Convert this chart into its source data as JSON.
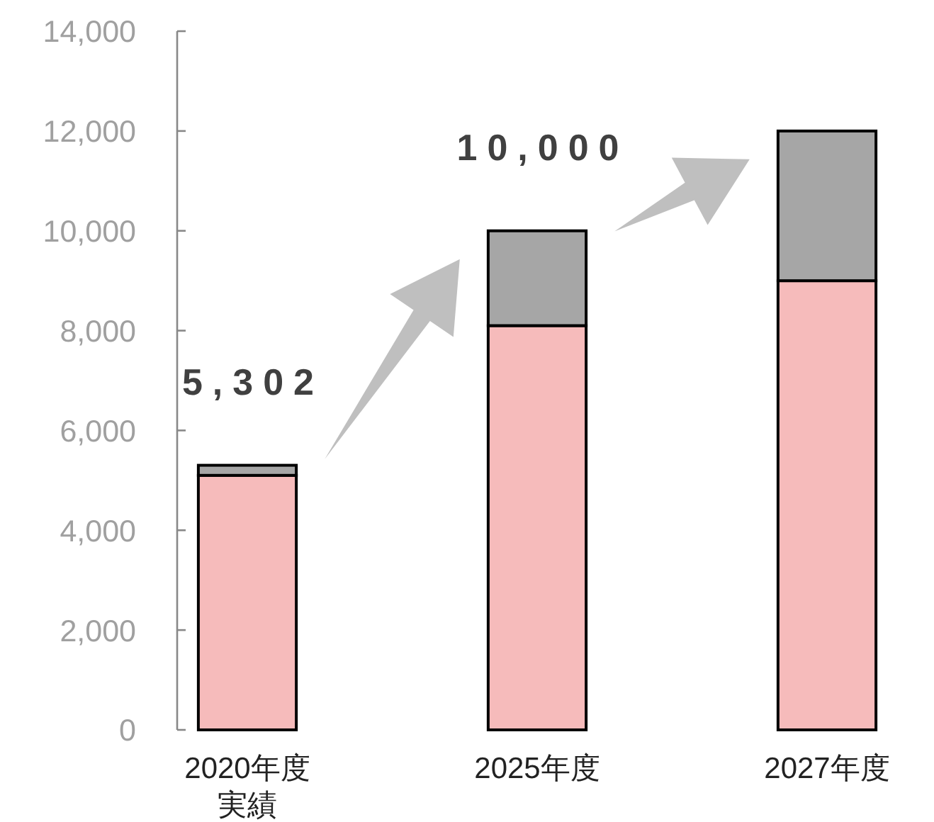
{
  "chart_data": {
    "type": "bar",
    "stacked": true,
    "categories": [
      "2020年度実績",
      "2025年度",
      "2027年度"
    ],
    "series": [
      {
        "color": "#f6bbbb",
        "values": [
          5100,
          8100,
          9000
        ]
      },
      {
        "color": "#a6a6a6",
        "values": [
          202,
          1900,
          3000
        ]
      }
    ],
    "ylim": [
      0,
      14000
    ],
    "yticks": [
      0,
      {
        "value": 2000,
        "label": "2,000"
      },
      {
        "value": 4000,
        "label": "4,000"
      },
      {
        "value": 6000,
        "label": "6,000"
      },
      {
        "value": 8000,
        "label": "8,000"
      },
      {
        "value": 10000,
        "label": "10,000"
      },
      {
        "value": 12000,
        "label": "12,000"
      },
      {
        "value": 14000,
        "label": "14,000"
      }
    ],
    "totals": [
      "5,302",
      "10,000",
      null
    ],
    "grid": false
  }
}
